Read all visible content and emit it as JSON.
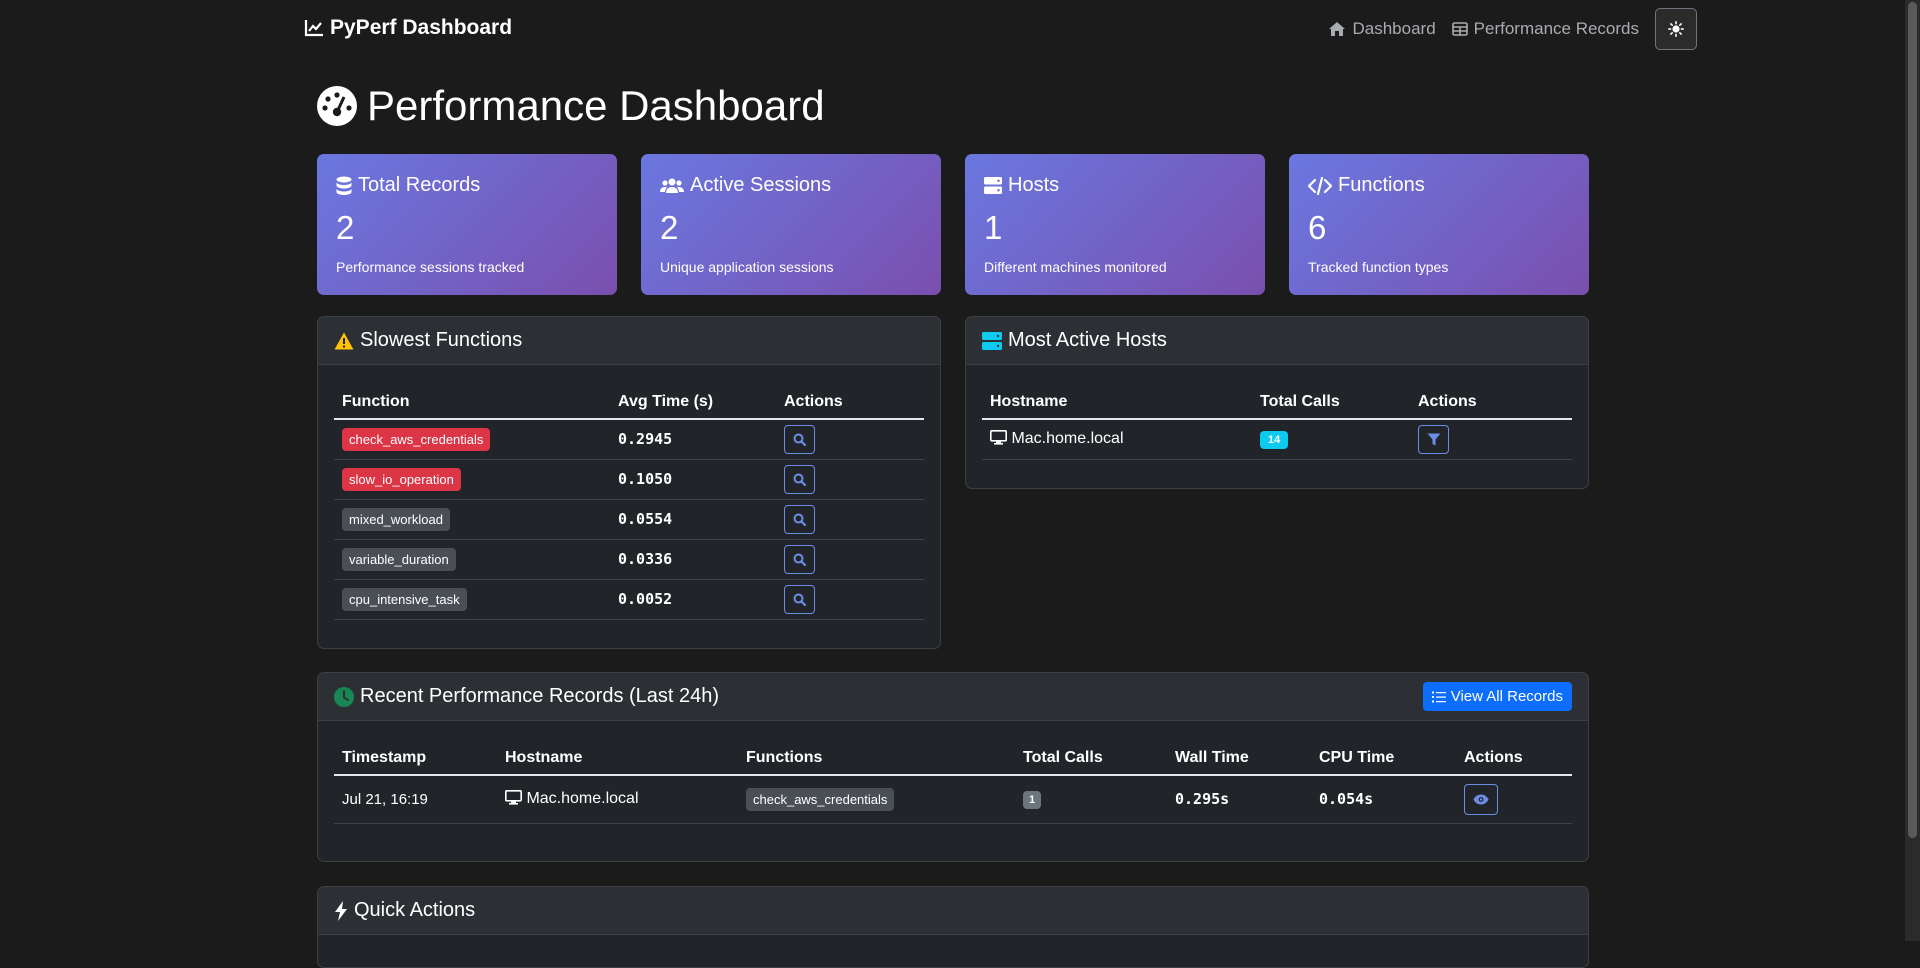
{
  "navbar": {
    "brand": "PyPerf Dashboard",
    "links": [
      {
        "label": "Dashboard",
        "icon": "house-icon"
      },
      {
        "label": "Performance Records",
        "icon": "table-icon"
      }
    ],
    "theme_toggle_icon": "sun-icon"
  },
  "page_title": "Performance Dashboard",
  "stats": [
    {
      "title": "Total Records",
      "value": "2",
      "desc": "Performance sessions tracked",
      "icon": "database-icon"
    },
    {
      "title": "Active Sessions",
      "value": "2",
      "desc": "Unique application sessions",
      "icon": "users-icon"
    },
    {
      "title": "Hosts",
      "value": "1",
      "desc": "Different machines monitored",
      "icon": "server-icon"
    },
    {
      "title": "Functions",
      "value": "6",
      "desc": "Tracked function types",
      "icon": "code-icon"
    }
  ],
  "slowest": {
    "title": "Slowest Functions",
    "columns": [
      "Function",
      "Avg Time (s)",
      "Actions"
    ],
    "rows": [
      {
        "name": "check_aws_credentials",
        "time": "0.2945",
        "severity": "red"
      },
      {
        "name": "slow_io_operation",
        "time": "0.1050",
        "severity": "red"
      },
      {
        "name": "mixed_workload",
        "time": "0.0554",
        "severity": "gray"
      },
      {
        "name": "variable_duration",
        "time": "0.0336",
        "severity": "gray"
      },
      {
        "name": "cpu_intensive_task",
        "time": "0.0052",
        "severity": "gray"
      }
    ]
  },
  "hosts": {
    "title": "Most Active Hosts",
    "columns": [
      "Hostname",
      "Total Calls",
      "Actions"
    ],
    "rows": [
      {
        "hostname": "Mac.home.local",
        "calls": "14"
      }
    ]
  },
  "recent": {
    "title": "Recent Performance Records (Last 24h)",
    "view_all_label": "View All Records",
    "columns": [
      "Timestamp",
      "Hostname",
      "Functions",
      "Total Calls",
      "Wall Time",
      "CPU Time",
      "Actions"
    ],
    "rows": [
      {
        "timestamp": "Jul 21, 16:19",
        "hostname": "Mac.home.local",
        "function": "check_aws_credentials",
        "calls": "1",
        "wall": "0.295s",
        "cpu": "0.054s"
      }
    ]
  },
  "quick_actions": {
    "title": "Quick Actions"
  },
  "colors": {
    "accent": "#0d6efd",
    "danger": "#dc3545",
    "info": "#0dcaf0",
    "warning": "#ffc107",
    "success": "#198754"
  }
}
